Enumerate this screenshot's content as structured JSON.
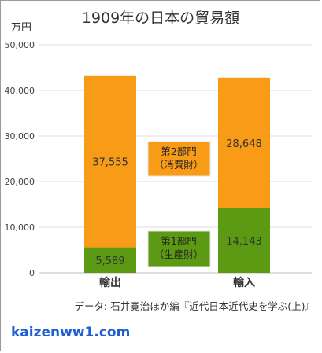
{
  "chart_data": {
    "type": "bar",
    "stacked": true,
    "title": "1909年の日本の貿易額",
    "ylabel": "万円",
    "ylim": [
      0,
      50000
    ],
    "yticks": [
      0,
      10000,
      20000,
      30000,
      40000,
      50000
    ],
    "ytick_labels": [
      "0",
      "10,000",
      "20,000",
      "30,000",
      "40,000",
      "50,000"
    ],
    "grid": true,
    "categories": [
      "輸出",
      "輸入"
    ],
    "series": [
      {
        "name": "第1部門（生産財）",
        "color": "#5b9a12",
        "values": [
          5589,
          14143
        ],
        "value_labels": [
          "5,589",
          "14,143"
        ]
      },
      {
        "name": "第2部門（消費財）",
        "color": "#f89b17",
        "values": [
          37555,
          28648
        ],
        "value_labels": [
          "37,555",
          "28,648"
        ]
      }
    ],
    "annotations": [
      {
        "lines": [
          "第2部門",
          "（消費財）"
        ],
        "color": "#f89b17"
      },
      {
        "lines": [
          "第1部門",
          "（生産財）"
        ],
        "color": "#5b9a12"
      }
    ],
    "source": "データ: 石井寛治ほか編『近代日本近代史を学ぶ(上)』"
  },
  "footer": {
    "site": "kaizenww1.com"
  }
}
